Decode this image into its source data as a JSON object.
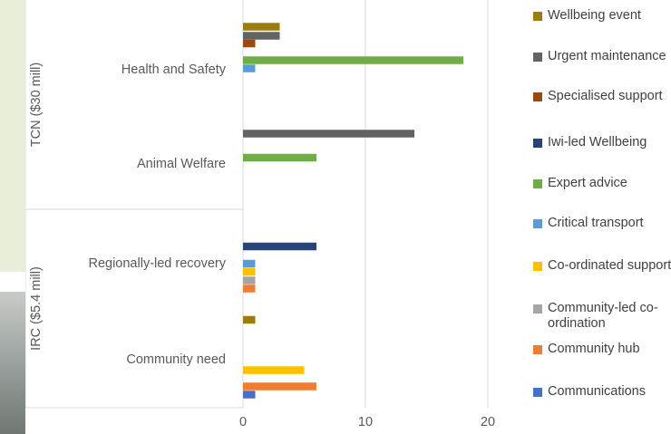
{
  "chart_data": {
    "type": "bar",
    "orientation": "horizontal",
    "groups": [
      {
        "label": "TCN ($30 mill)",
        "subcategories": [
          {
            "label": "Health and Safety",
            "bars": [
              {
                "series": "Wellbeing event",
                "value": 3
              },
              {
                "series": "Urgent maintenance",
                "value": 3
              },
              {
                "series": "Specialised support",
                "value": 1
              },
              {
                "series": "Expert advice",
                "value": 18
              },
              {
                "series": "Critical transport",
                "value": 1
              }
            ]
          },
          {
            "label": "Animal Welfare",
            "bars": [
              {
                "series": "Urgent maintenance",
                "value": 14
              },
              {
                "series": "Expert advice",
                "value": 6
              }
            ]
          }
        ]
      },
      {
        "label": "IRC ($5.4 mill)",
        "subcategories": [
          {
            "label": "Regionally-led recovery",
            "bars": [
              {
                "series": "Iwi-led Wellbeing",
                "value": 6
              },
              {
                "series": "Critical transport",
                "value": 1
              },
              {
                "series": "Co-ordinated support",
                "value": 1
              },
              {
                "series": "Community-led co-ordination",
                "value": 1
              },
              {
                "series": "Community hub",
                "value": 1
              }
            ]
          },
          {
            "label": "Community need",
            "bars": [
              {
                "series": "Wellbeing event",
                "value": 1
              },
              {
                "series": "Co-ordinated support",
                "value": 5
              },
              {
                "series": "Community hub",
                "value": 6
              },
              {
                "series": "Communications",
                "value": 1
              }
            ]
          }
        ]
      }
    ],
    "xlim": [
      0,
      20
    ],
    "xticks": [
      0,
      10,
      20
    ],
    "grid": "vertical",
    "legend_position": "right",
    "legend": [
      {
        "name": "Wellbeing event",
        "color": "#9c7d0a"
      },
      {
        "name": "Urgent maintenance",
        "color": "#636363"
      },
      {
        "name": "Specialised support",
        "color": "#9e480e"
      },
      {
        "name": "Iwi-led Wellbeing",
        "color": "#264478"
      },
      {
        "name": "Expert advice",
        "color": "#70ad47"
      },
      {
        "name": "Critical transport",
        "color": "#5b9bd5"
      },
      {
        "name": "Co-ordinated support",
        "color": "#ffc000"
      },
      {
        "name": "Community-led co-ordination",
        "color": "#a5a5a5"
      },
      {
        "name": "Community hub",
        "color": "#ed7d31"
      },
      {
        "name": "Communications",
        "color": "#4472c4"
      }
    ]
  }
}
